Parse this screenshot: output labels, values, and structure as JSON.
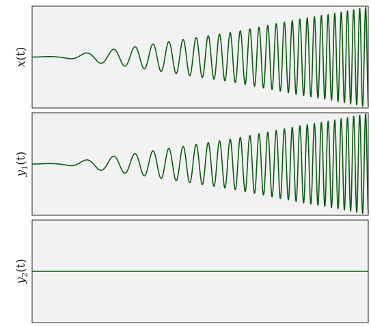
{
  "figure": {
    "background": "#ffffff",
    "panel_background": "#f2f2f2",
    "frame_color": "#222222",
    "line_color": "#0c5a10"
  },
  "chart_data": [
    {
      "type": "line",
      "title": "",
      "xlabel": "",
      "ylabel": "x(t)",
      "ylabel_parts": {
        "base": "x",
        "sub": "",
        "arg": "(t)"
      },
      "grid": false,
      "ticks_shown": false,
      "xlim": [
        0,
        1
      ],
      "ylim": [
        -1,
        1
      ],
      "description_of_signal": "",
      "series": [
        {
          "envelope": {
            "t": [
              0,
              0.1,
              0.2,
              0.3,
              0.4,
              0.5,
              0.6,
              0.7,
              0.8,
              0.9,
              1.0
            ],
            "amplitude": [
              0.0,
              0.02,
              0.12,
              0.2,
              0.3,
              0.4,
              0.5,
              0.63,
              0.76,
              0.87,
              1.0
            ]
          },
          "frequency": {
            "t": [
              0,
              0.2,
              0.4,
              0.6,
              0.8,
              1.0
            ],
            "cycles_per_unit": [
              5,
              12,
              22,
              33,
              45,
              58
            ]
          }
        }
      ]
    },
    {
      "type": "line",
      "title": "",
      "xlabel": "",
      "ylabel": "y1(t)",
      "ylabel_parts": {
        "base": "y",
        "sub": "1",
        "arg": "(t)"
      },
      "grid": false,
      "ticks_shown": false,
      "xlim": [
        0,
        1
      ],
      "ylim": [
        -1,
        1
      ],
      "series": [
        {
          "envelope": {
            "t": [
              0,
              0.1,
              0.2,
              0.3,
              0.4,
              0.5,
              0.6,
              0.7,
              0.8,
              0.9,
              1.0
            ],
            "amplitude": [
              0.0,
              0.02,
              0.12,
              0.2,
              0.3,
              0.4,
              0.5,
              0.63,
              0.76,
              0.87,
              1.0
            ]
          },
          "frequency": {
            "t": [
              0,
              0.2,
              0.4,
              0.6,
              0.8,
              1.0
            ],
            "cycles_per_unit": [
              5,
              12,
              22,
              33,
              45,
              58
            ]
          }
        }
      ]
    },
    {
      "type": "line",
      "title": "",
      "xlabel": "",
      "ylabel": "y2(t)",
      "ylabel_parts": {
        "base": "y",
        "sub": "2",
        "arg": "(t)"
      },
      "grid": false,
      "ticks_shown": false,
      "xlim": [
        0,
        1
      ],
      "ylim": [
        -1,
        1
      ],
      "series": [
        {
          "envelope": {
            "t": [
              0,
              1.0
            ],
            "amplitude": [
              0.0,
              0.0
            ]
          },
          "frequency": {
            "t": [
              0,
              1.0
            ],
            "cycles_per_unit": [
              5,
              5
            ]
          }
        }
      ]
    }
  ]
}
